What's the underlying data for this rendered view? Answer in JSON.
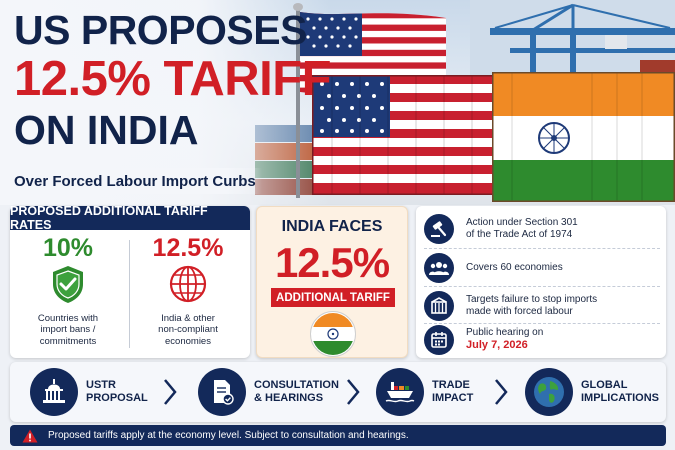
{
  "headline": {
    "line1": "US PROPOSES",
    "line2": "12.5% TARIFF",
    "line3": "ON INDIA",
    "subtitle": "Over Forced Labour Import Curbs"
  },
  "rates": {
    "header": "PROPOSED ADDITIONAL TARIFF RATES",
    "left": {
      "value": "10%",
      "label": "Countries with\nimport bans /\ncommitments",
      "color": "#2e8b2e"
    },
    "right": {
      "value": "12.5%",
      "label": "India & other\nnon-compliant\neconomies",
      "color": "#d11f26"
    }
  },
  "india_faces": {
    "title": "INDIA FACES",
    "value": "12.5%",
    "badge": "ADDITIONAL TARIFF"
  },
  "facts": [
    {
      "icon": "gavel-icon",
      "text": "Action under Section 301\nof the Trade Act of 1974"
    },
    {
      "icon": "group-icon",
      "text": "Covers 60 economies"
    },
    {
      "icon": "factory-icon",
      "text": "Targets failure to stop imports\nmade with forced labour"
    },
    {
      "icon": "calendar-icon",
      "text": "Public hearing on",
      "date": "July 7, 2026"
    }
  ],
  "process": [
    {
      "icon": "capitol-icon",
      "label": "USTR\nPROPOSAL"
    },
    {
      "icon": "document-check-icon",
      "label": "CONSULTATION\n& HEARINGS"
    },
    {
      "icon": "cargo-ship-icon",
      "label": "TRADE\nIMPACT"
    },
    {
      "icon": "globe-icon",
      "label": "GLOBAL\nIMPLICATIONS"
    }
  ],
  "footer": {
    "icon": "warning-icon",
    "text": "Proposed tariffs apply at the economy level. Subject to consultation and hearings."
  },
  "colors": {
    "navy": "#13295a",
    "red": "#d11f26",
    "green": "#2e8b2e",
    "saffron": "#f08a24"
  }
}
